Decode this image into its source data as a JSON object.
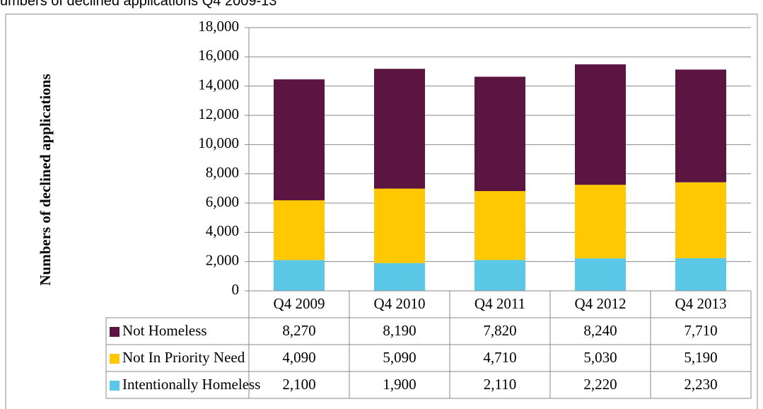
{
  "chart_data": {
    "type": "stacked-bar",
    "title": "umbers of declined applications Q4 2009-13",
    "y_label": "Numbers of declined applications",
    "categories": [
      "Q4 2009",
      "Q4 2010",
      "Q4 2011",
      "Q4 2012",
      "Q4 2013"
    ],
    "series": [
      {
        "name": "Intentionally Homeless",
        "color": "#5bc8e8",
        "values": [
          2100,
          1900,
          2110,
          2220,
          2230
        ],
        "value_labels": [
          "2,100",
          "1,900",
          "2,110",
          "2,220",
          "2,230"
        ]
      },
      {
        "name": "Not In Priority Need",
        "color": "#ffc800",
        "values": [
          4090,
          5090,
          4710,
          5030,
          5190
        ],
        "value_labels": [
          "4,090",
          "5,090",
          "4,710",
          "5,030",
          "5,190"
        ]
      },
      {
        "name": "Not Homeless",
        "color": "#5c1440",
        "values": [
          8270,
          8190,
          7820,
          8240,
          7710
        ],
        "value_labels": [
          "8,270",
          "8,190",
          "7,820",
          "8,240",
          "7,710"
        ]
      }
    ],
    "ylim": [
      0,
      18000
    ],
    "yticks": [
      0,
      {
        "value": 2000,
        "label": "2,000"
      },
      {
        "value": 4000,
        "label": "4,000"
      },
      {
        "value": 6000,
        "label": "6,000"
      },
      {
        "value": 8000,
        "label": "8,000"
      },
      {
        "value": 10000,
        "label": "10,000"
      },
      {
        "value": 12000,
        "label": "12,000"
      },
      {
        "value": 14000,
        "label": "14,000"
      },
      {
        "value": 16000,
        "label": "16,000"
      },
      {
        "value": 18000,
        "label": "18,000"
      }
    ],
    "grid": true
  }
}
